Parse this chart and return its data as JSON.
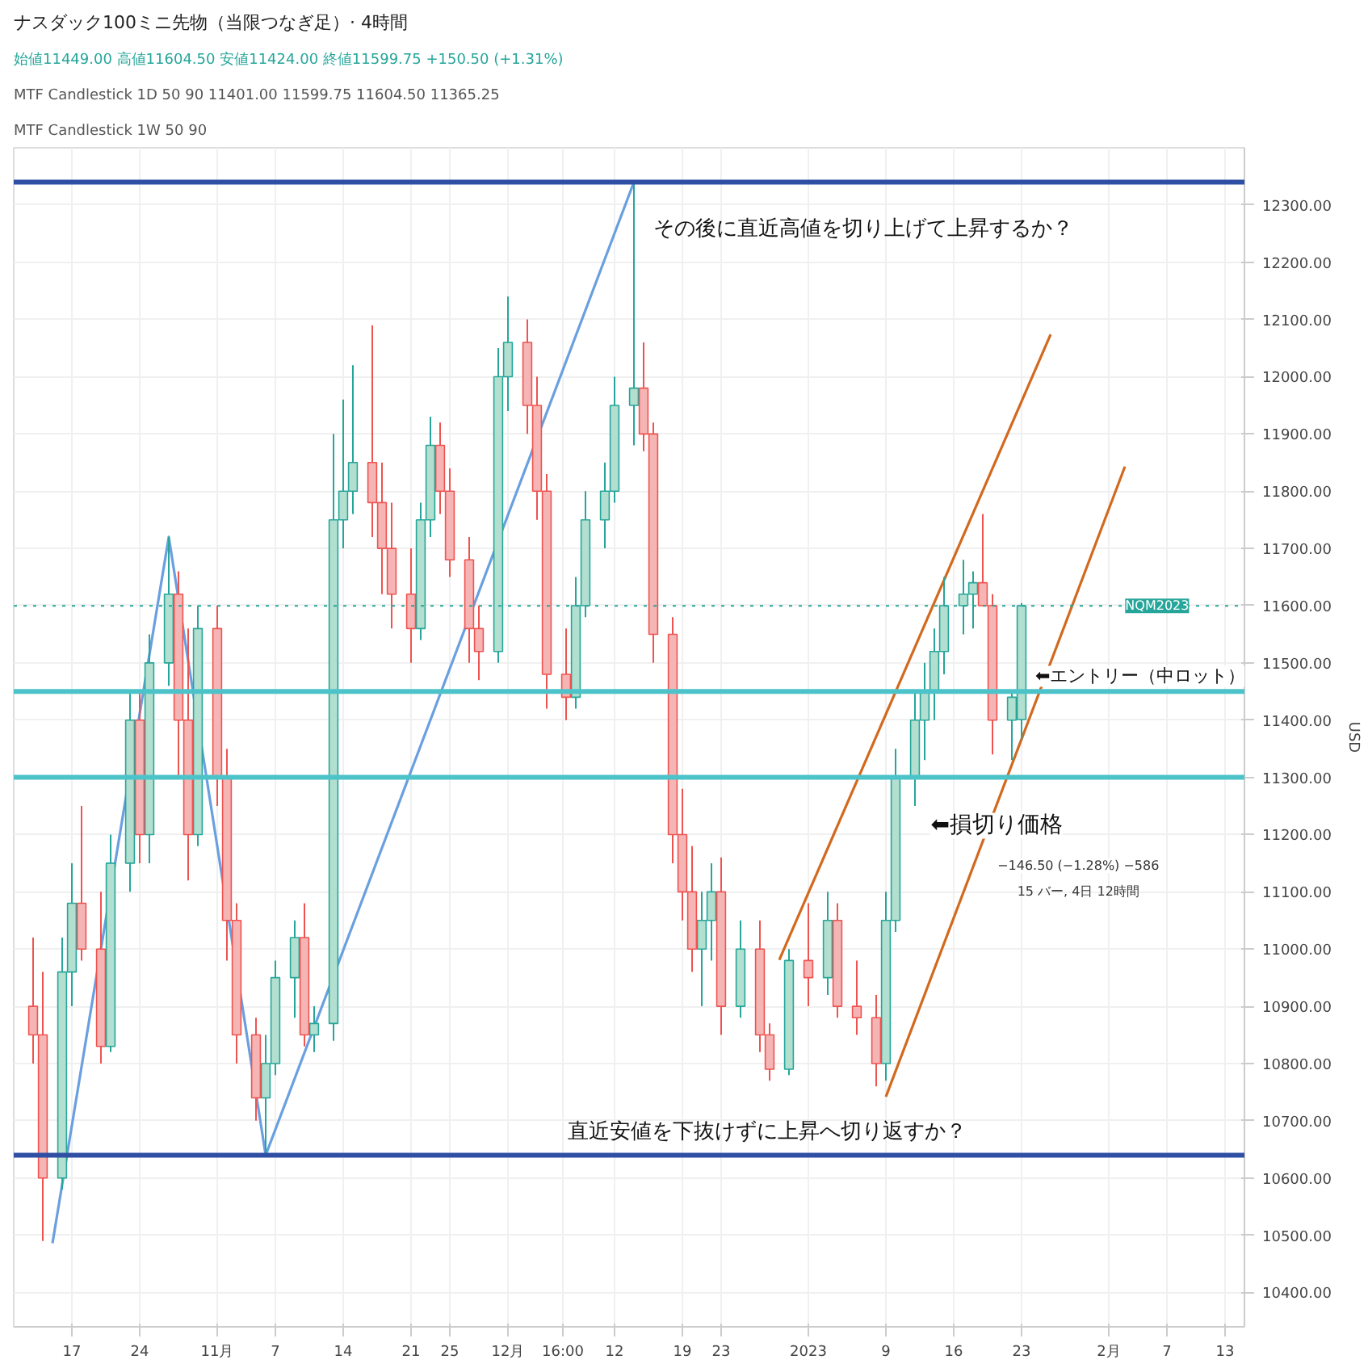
{
  "chart_data": {
    "type": "candlestick",
    "title": "ナスダック100ミニ先物（当限つなぎ足）· 4時間",
    "subtitle": "始値11449.00 高値11604.50 安値11424.00 終値11599.75 +150.50 (+1.31%)",
    "ylabel": "USD",
    "annotations": [
      "MTF Candlestick 1D 50 90  11401.00 11599.75 11604.50 11365.25",
      "MTF Candlestick 1W 50 90",
      "−146.50 (−1.28%) −586",
      "15 バー, 4日 12時間"
    ],
    "x": [
      "2022-10-13",
      "2022-10-14",
      "2022-10-16",
      "2022-10-17",
      "2022-10-18",
      "2022-10-20",
      "2022-10-21",
      "2022-10-23",
      "2022-10-24",
      "2022-10-25",
      "2022-10-27",
      "2022-10-28",
      "2022-10-29",
      "2022-10-30",
      "2022-11-01",
      "2022-11-02",
      "2022-11-03",
      "2022-11-05",
      "2022-11-06",
      "2022-11-07",
      "2022-11-09",
      "2022-11-10",
      "2022-11-11",
      "2022-11-13",
      "2022-11-14",
      "2022-11-15",
      "2022-11-17",
      "2022-11-18",
      "2022-11-19",
      "2022-11-21",
      "2022-11-22",
      "2022-11-23",
      "2022-11-24",
      "2022-11-25",
      "2022-11-27",
      "2022-11-28",
      "2022-11-30",
      "2022-12-01",
      "2022-12-03",
      "2022-12-04",
      "2022-12-05",
      "2022-12-07",
      "2022-12-08",
      "2022-12-09",
      "2022-12-11",
      "2022-12-12",
      "2022-12-14",
      "2022-12-15",
      "2022-12-16",
      "2022-12-18",
      "2022-12-19",
      "2022-12-20",
      "2022-12-21",
      "2022-12-22",
      "2022-12-23",
      "2022-12-25",
      "2022-12-27",
      "2022-12-28",
      "2022-12-30",
      "2023-01-01",
      "2023-01-03",
      "2023-01-04",
      "2023-01-06",
      "2023-01-08",
      "2023-01-09",
      "2023-01-10",
      "2023-01-12",
      "2023-01-13",
      "2023-01-14",
      "2023-01-15",
      "2023-01-17",
      "2023-01-18",
      "2023-01-19",
      "2023-01-20",
      "2023-01-22",
      "2023-01-23"
    ],
    "ohlc": [
      [
        10900,
        11020,
        10800,
        10850
      ],
      [
        10850,
        10960,
        10490,
        10600
      ],
      [
        10600,
        11020,
        10580,
        10960
      ],
      [
        10960,
        11150,
        10900,
        11080
      ],
      [
        11080,
        11250,
        10980,
        11000
      ],
      [
        11000,
        11100,
        10800,
        10830
      ],
      [
        10830,
        11200,
        10820,
        11150
      ],
      [
        11150,
        11450,
        11100,
        11400
      ],
      [
        11400,
        11450,
        11150,
        11200
      ],
      [
        11200,
        11550,
        11150,
        11500
      ],
      [
        11500,
        11720,
        11460,
        11620
      ],
      [
        11620,
        11660,
        11300,
        11400
      ],
      [
        11400,
        11560,
        11120,
        11200
      ],
      [
        11200,
        11600,
        11180,
        11560
      ],
      [
        11560,
        11600,
        11250,
        11300
      ],
      [
        11300,
        11350,
        10980,
        11050
      ],
      [
        11050,
        11080,
        10800,
        10850
      ],
      [
        10850,
        10880,
        10700,
        10740
      ],
      [
        10740,
        10850,
        10640,
        10800
      ],
      [
        10800,
        10980,
        10780,
        10950
      ],
      [
        10950,
        11050,
        10880,
        11020
      ],
      [
        11020,
        11080,
        10830,
        10850
      ],
      [
        10850,
        10900,
        10820,
        10870
      ],
      [
        10870,
        11900,
        10840,
        11750
      ],
      [
        11750,
        11960,
        11700,
        11800
      ],
      [
        11800,
        12020,
        11760,
        11850
      ],
      [
        11850,
        12090,
        11720,
        11780
      ],
      [
        11780,
        11850,
        11620,
        11700
      ],
      [
        11700,
        11780,
        11560,
        11620
      ],
      [
        11620,
        11700,
        11500,
        11560
      ],
      [
        11560,
        11780,
        11540,
        11750
      ],
      [
        11750,
        11930,
        11720,
        11880
      ],
      [
        11880,
        11920,
        11760,
        11800
      ],
      [
        11800,
        11840,
        11650,
        11680
      ],
      [
        11680,
        11720,
        11500,
        11560
      ],
      [
        11560,
        11600,
        11470,
        11520
      ],
      [
        11520,
        12050,
        11500,
        12000
      ],
      [
        12000,
        12140,
        11940,
        12060
      ],
      [
        12060,
        12100,
        11900,
        11950
      ],
      [
        11950,
        12000,
        11750,
        11800
      ],
      [
        11800,
        11830,
        11420,
        11480
      ],
      [
        11480,
        11560,
        11400,
        11440
      ],
      [
        11440,
        11650,
        11420,
        11600
      ],
      [
        11600,
        11800,
        11580,
        11750
      ],
      [
        11750,
        11850,
        11700,
        11800
      ],
      [
        11800,
        12000,
        11780,
        11950
      ],
      [
        11950,
        12340,
        11880,
        11980
      ],
      [
        11980,
        12060,
        11870,
        11900
      ],
      [
        11900,
        11920,
        11500,
        11550
      ],
      [
        11550,
        11580,
        11150,
        11200
      ],
      [
        11200,
        11280,
        11050,
        11100
      ],
      [
        11100,
        11180,
        10960,
        11000
      ],
      [
        11000,
        11100,
        10900,
        11050
      ],
      [
        11050,
        11150,
        10980,
        11100
      ],
      [
        11100,
        11160,
        10850,
        10900
      ],
      [
        10900,
        11050,
        10880,
        11000
      ],
      [
        11000,
        11050,
        10820,
        10850
      ],
      [
        10850,
        10870,
        10770,
        10790
      ],
      [
        10790,
        11000,
        10780,
        10980
      ],
      [
        10980,
        11080,
        10900,
        10950
      ],
      [
        10950,
        11100,
        10920,
        11050
      ],
      [
        11050,
        11080,
        10880,
        10900
      ],
      [
        10900,
        10980,
        10850,
        10880
      ],
      [
        10880,
        10920,
        10760,
        10800
      ],
      [
        10800,
        11100,
        10770,
        11050
      ],
      [
        11050,
        11350,
        11030,
        11300
      ],
      [
        11300,
        11450,
        11250,
        11400
      ],
      [
        11400,
        11500,
        11330,
        11450
      ],
      [
        11450,
        11560,
        11400,
        11520
      ],
      [
        11520,
        11650,
        11480,
        11600
      ],
      [
        11600,
        11680,
        11550,
        11620
      ],
      [
        11620,
        11660,
        11560,
        11640
      ],
      [
        11640,
        11760,
        11600,
        11600
      ],
      [
        11600,
        11620,
        11340,
        11400
      ],
      [
        11400,
        11450,
        11330,
        11440
      ],
      [
        11401,
        11604.5,
        11365.25,
        11599.75
      ]
    ],
    "series": [
      {
        "type": "line",
        "color": "#6a9fe0",
        "x": [
          "2022-10-15",
          "2022-10-27",
          "2022-11-06",
          "2022-12-14"
        ],
        "values": [
          10486,
          11720,
          10640,
          12340
        ]
      },
      {
        "type": "line",
        "color": "#d2691e",
        "x": [
          "2022-12-29",
          "2023-01-26"
        ],
        "values": [
          10981,
          12074
        ]
      },
      {
        "type": "line",
        "color": "#d2691e",
        "x": [
          "2023-01-09",
          "2023-02-02T16:00"
        ],
        "values": [
          10742,
          11843
        ]
      }
    ],
    "ref_lines": [
      {
        "axis": "y",
        "value": 12340,
        "label": "その後に直近高値を切り上げて上昇するか？",
        "color": "#2e4fa3"
      },
      {
        "axis": "y",
        "value": 10640,
        "label": "直近安値を下抜けずに上昇へ切り返すか？",
        "color": "#2e4fa3"
      },
      {
        "axis": "y",
        "value": 11450,
        "label": "⬅エントリー（中ロット）",
        "color": "#4cc3c9"
      },
      {
        "axis": "y",
        "value": 11300,
        "label": "⬅損切り価格",
        "color": "#4cc3c9"
      },
      {
        "axis": "y",
        "value": 11599.75,
        "label": "NQM2023",
        "color": "#26a69a",
        "line_style": "dotted"
      }
    ],
    "xlim": [
      "2022-10-11",
      "2023-02-15"
    ],
    "ylim": [
      10340,
      12400
    ],
    "xticks": [
      {
        "value": "2022-10-17",
        "label": "17"
      },
      {
        "value": "2022-10-24",
        "label": "24"
      },
      {
        "value": "2022-11-01",
        "label": "11月"
      },
      {
        "value": "2022-11-07",
        "label": "7"
      },
      {
        "value": "2022-11-14",
        "label": "14"
      },
      {
        "value": "2022-11-21",
        "label": "21"
      },
      {
        "value": "2022-11-25",
        "label": "25"
      },
      {
        "value": "2022-12-01",
        "label": "12月"
      },
      {
        "value": "2022-12-06T16:00",
        "label": "16:00"
      },
      {
        "value": "2022-12-12",
        "label": "12"
      },
      {
        "value": "2022-12-19",
        "label": "19"
      },
      {
        "value": "2022-12-23",
        "label": "23"
      },
      {
        "value": "2023-01-01",
        "label": "2023"
      },
      {
        "value": "2023-01-09",
        "label": "9"
      },
      {
        "value": "2023-01-16",
        "label": "16"
      },
      {
        "value": "2023-01-23",
        "label": "23"
      },
      {
        "value": "2023-02-01",
        "label": "2月"
      },
      {
        "value": "2023-02-07",
        "label": "7"
      },
      {
        "value": "2023-02-13",
        "label": "13"
      }
    ],
    "yticks": [
      {
        "value": 10400,
        "label": "10400.00"
      },
      {
        "value": 10500,
        "label": "10500.00"
      },
      {
        "value": 10600,
        "label": "10600.00"
      },
      {
        "value": 10700,
        "label": "10700.00"
      },
      {
        "value": 10800,
        "label": "10800.00"
      },
      {
        "value": 10900,
        "label": "10900.00"
      },
      {
        "value": 11000,
        "label": "11000.00"
      },
      {
        "value": 11100,
        "label": "11100.00"
      },
      {
        "value": 11200,
        "label": "11200.00"
      },
      {
        "value": 11300,
        "label": "11300.00"
      },
      {
        "value": 11400,
        "label": "11400.00"
      },
      {
        "value": 11500,
        "label": "11500.00"
      },
      {
        "value": 11600,
        "label": "11600.00"
      },
      {
        "value": 11700,
        "label": "11700.00"
      },
      {
        "value": 11800,
        "label": "11800.00"
      },
      {
        "value": 11900,
        "label": "11900.00"
      },
      {
        "value": 12000,
        "label": "12000.00"
      },
      {
        "value": 12100,
        "label": "12100.00"
      },
      {
        "value": 12200,
        "label": "12200.00"
      },
      {
        "value": 12300,
        "label": "12300.00"
      }
    ],
    "grid": true
  }
}
